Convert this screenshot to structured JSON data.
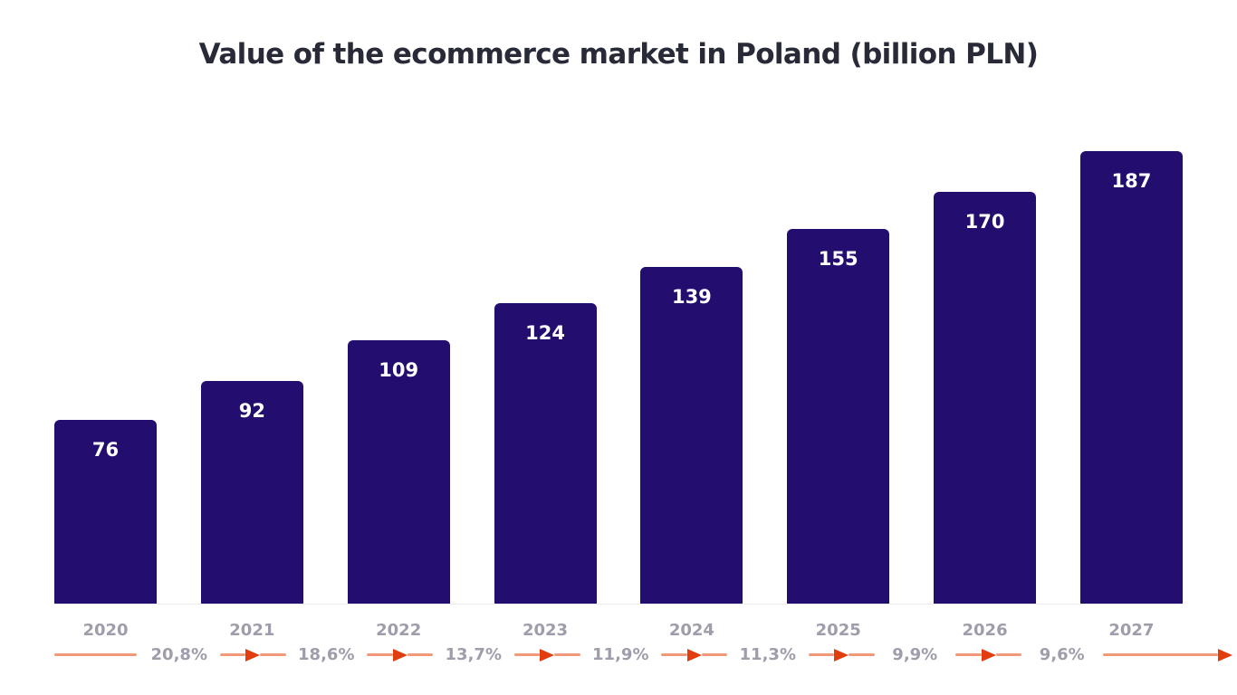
{
  "title": "Value of the ecommerce market in Poland (billion PLN)",
  "chart_data": {
    "type": "bar",
    "title": "Value of the ecommerce market in Poland (billion PLN)",
    "unit": "billion PLN",
    "categories": [
      "2020",
      "2021",
      "2022",
      "2023",
      "2024",
      "2025",
      "2026",
      "2027"
    ],
    "values": [
      76,
      92,
      109,
      124,
      139,
      155,
      170,
      187
    ],
    "value_labels": [
      "76",
      "92",
      "109",
      "124",
      "139",
      "155",
      "170",
      "187"
    ],
    "growth_labels": [
      "20,8%",
      "18,6%",
      "13,7%",
      "11,9%",
      "11,3%",
      "9,9%",
      "9,6%"
    ],
    "ylim": [
      0,
      187
    ],
    "grid": false,
    "legend": "none",
    "layout": {
      "bar_value_position": "inside-top",
      "growth_arrows": "between-years, arrowheads pointing right"
    },
    "colors": {
      "bar": "#230e6f",
      "bar_value_text": "#ffffff",
      "axis_text": "#9e9dab",
      "growth_text": "#9e9dab",
      "arrow_line": "#f2997a",
      "arrow_head": "#e23d0e",
      "baseline": "#ececf1",
      "title_text": "#282b37",
      "background": "#ffffff"
    }
  }
}
